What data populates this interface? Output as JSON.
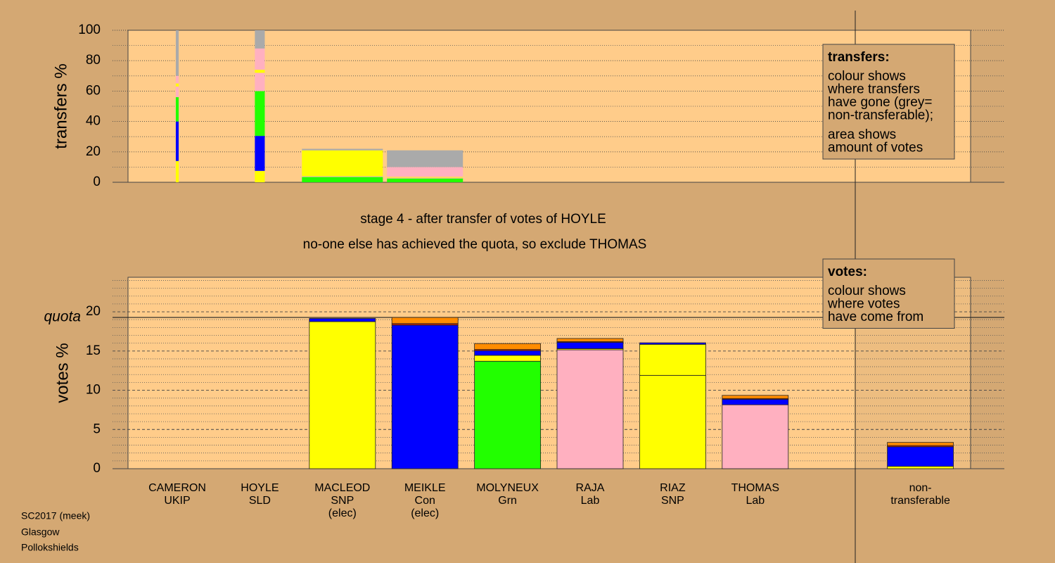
{
  "chart_data": [
    {
      "type": "bar",
      "stacked": true,
      "ylabel": "transfers %",
      "ylim": [
        0,
        100
      ],
      "yticks": [
        0,
        20,
        40,
        60,
        80,
        100
      ],
      "minor_yticks": [
        10,
        30,
        50,
        70,
        90
      ],
      "grid": true,
      "amounts": [
        0.035,
        0.12,
        0.98,
        0.92,
        null,
        null,
        null,
        null,
        null
      ],
      "series": [
        {
          "color": "#cc2200",
          "values": [
            0,
            0,
            0,
            0,
            null,
            null,
            null,
            null,
            null
          ]
        },
        {
          "color": "#ff8c00",
          "values": [
            0,
            0,
            0,
            0,
            null,
            null,
            null,
            null,
            null
          ]
        },
        {
          "color": "#ffff00",
          "values": [
            14,
            7.5,
            0,
            0,
            null,
            null,
            null,
            null,
            null
          ]
        },
        {
          "color": "#0000ff",
          "values": [
            26,
            23,
            0,
            0,
            null,
            null,
            null,
            null,
            null
          ]
        },
        {
          "color": "#22ff00",
          "values": [
            16,
            29.5,
            3.5,
            2.5,
            null,
            null,
            null,
            null,
            null
          ]
        },
        {
          "color": "#ffb0c0",
          "values": [
            7,
            12,
            0.5,
            0.5,
            null,
            null,
            null,
            null,
            null
          ]
        },
        {
          "color": "#ffff00",
          "values": [
            2,
            2,
            17,
            0.5,
            null,
            null,
            null,
            null,
            null
          ]
        },
        {
          "color": "#ffb0c0",
          "values": [
            5,
            14,
            0,
            6.5,
            null,
            null,
            null,
            null,
            null
          ]
        },
        {
          "color": "#aaaaaa",
          "values": [
            30,
            12,
            1,
            11,
            null,
            null,
            null,
            null,
            null
          ]
        }
      ],
      "legend": {
        "title": "transfers:",
        "blocks": [
          [
            "colour shows",
            "where transfers",
            "have gone (grey=",
            "non-transferable);"
          ],
          [
            "area shows",
            "amount of votes"
          ]
        ]
      }
    },
    {
      "type": "bar",
      "stacked": true,
      "titles": [
        "stage 4 - after transfer of votes of HOYLE",
        "no-one else has achieved the quota, so exclude THOMAS"
      ],
      "ylabel": "votes %",
      "ylim": [
        0,
        24.4
      ],
      "yticks": [
        0,
        5,
        10,
        15,
        20
      ],
      "minor_yticks": [
        1,
        2,
        3,
        4,
        6,
        7,
        8,
        9,
        11,
        12,
        13,
        14,
        16,
        17,
        18,
        19,
        21,
        22,
        23,
        24
      ],
      "grid": true,
      "quota": 19.28,
      "quota_label": "quota",
      "categories": [
        [
          "CAMERON",
          "UKIP"
        ],
        [
          "HOYLE",
          "SLD"
        ],
        [
          "MACLEOD",
          "SNP",
          "(elec)"
        ],
        [
          "MEIKLE",
          "Con",
          "(elec)"
        ],
        [
          "MOLYNEUX",
          "Grn"
        ],
        [
          "RAJA",
          "Lab"
        ],
        [
          "RIAZ",
          "SNP"
        ],
        [
          "THOMAS",
          "Lab"
        ],
        [
          "non-",
          "transferable"
        ]
      ],
      "series": [
        {
          "colors": [
            "#cc2200",
            "#ff8c00",
            "#ffff00",
            "#0000ff",
            "#22ff00",
            "#ffb0c0",
            "#ffff00",
            "#ffb0c0",
            "#aaaaaa"
          ],
          "values": [
            0,
            0,
            18.75,
            18.3,
            13.7,
            15.15,
            11.9,
            8.15,
            0
          ]
        },
        {
          "color": "#ffff00",
          "values": [
            0,
            0,
            0,
            0,
            0.75,
            0.15,
            3.95,
            0,
            0.3
          ]
        },
        {
          "color": "#0000ff",
          "values": [
            0,
            0,
            0.4,
            0,
            0.6,
            0.8,
            0.2,
            0.7,
            2.5
          ]
        },
        {
          "color": "#cc2200",
          "values": [
            0,
            0,
            0,
            0.2,
            0.15,
            0.1,
            0,
            0.1,
            0.15
          ]
        },
        {
          "color": "#ff8c00",
          "values": [
            0,
            0,
            0,
            0.78,
            0.75,
            0.4,
            0,
            0.4,
            0.4
          ]
        }
      ],
      "legend": {
        "title": "votes:",
        "blocks": [
          [
            "colour shows",
            "where votes",
            "have come from"
          ]
        ]
      }
    }
  ],
  "footer": [
    "SC2017 (meek)",
    "Glasgow",
    "Pollokshields"
  ]
}
